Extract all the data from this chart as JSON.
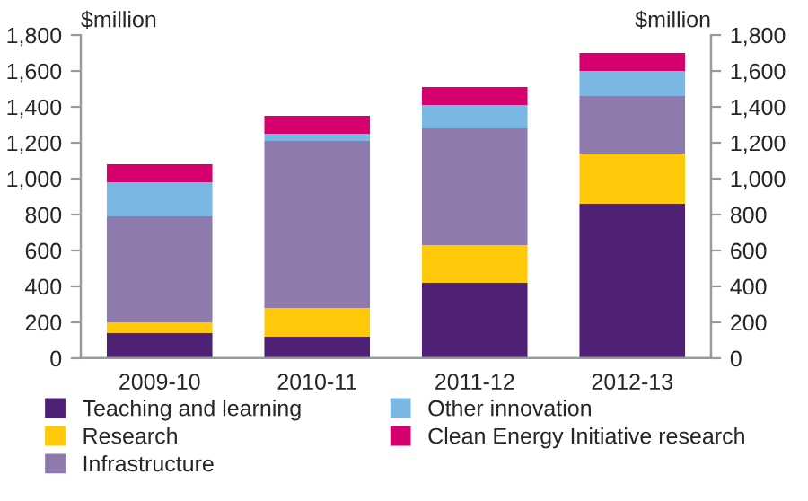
{
  "chart_data": {
    "type": "bar",
    "stacked": true,
    "ylabel": "$million",
    "y2label": "$million",
    "categories": [
      "2009-10",
      "2010-11",
      "2011-12",
      "2012-13"
    ],
    "series": [
      {
        "name": "Teaching and learning",
        "color": "#4e2176",
        "values": [
          140,
          120,
          420,
          860
        ]
      },
      {
        "name": "Research",
        "color": "#ffc90a",
        "values": [
          60,
          160,
          210,
          280
        ]
      },
      {
        "name": "Infrastructure",
        "color": "#8e7aad",
        "values": [
          590,
          930,
          650,
          320
        ]
      },
      {
        "name": "Other innovation",
        "color": "#7ab7e3",
        "values": [
          190,
          40,
          130,
          140
        ]
      },
      {
        "name": "Clean Energy Initiative research",
        "color": "#d6006e",
        "values": [
          100,
          100,
          100,
          100
        ]
      }
    ],
    "ylim": [
      0,
      1800
    ],
    "yticks": [
      0,
      200,
      400,
      600,
      800,
      {
        "value": 1000,
        "label": "1,000"
      },
      {
        "value": 1200,
        "label": "1,200"
      },
      {
        "value": 1400,
        "label": "1,400"
      },
      {
        "value": 1600,
        "label": "1,600"
      },
      {
        "value": 1800,
        "label": "1,800"
      }
    ],
    "y2lim": [
      0,
      1800
    ],
    "y2ticks": [
      0,
      200,
      400,
      600,
      800,
      {
        "value": 1000,
        "label": "1,000"
      },
      {
        "value": 1200,
        "label": "1,200"
      },
      {
        "value": 1400,
        "label": "1,400"
      },
      {
        "value": 1600,
        "label": "1,600"
      },
      {
        "value": 1800,
        "label": "1,800"
      }
    ],
    "grid": false,
    "legend": "bottom"
  }
}
